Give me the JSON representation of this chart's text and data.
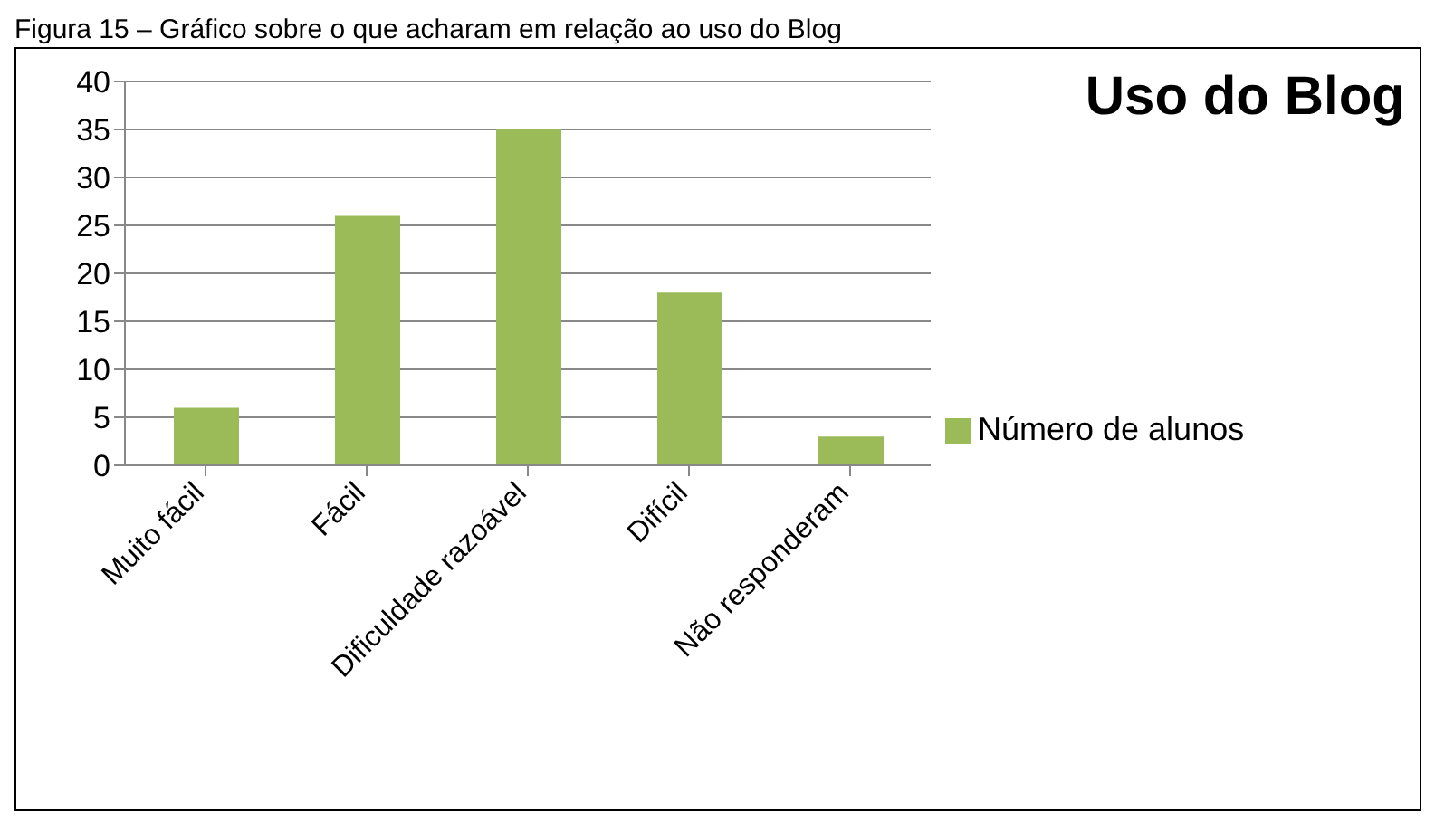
{
  "chart_data": {
    "type": "bar",
    "title": "Uso do Blog",
    "annotations": [
      "Figura 15 – Gráfico sobre o que acharam em relação ao uso do Blog"
    ],
    "categories": [
      "Muito fácil",
      "Fácil",
      "Dificuldade razoável",
      "Difícil",
      "Não responderam"
    ],
    "series": [
      {
        "name": "Número de alunos",
        "color": "#9bbb59",
        "values": [
          6,
          26,
          35,
          18,
          3
        ]
      }
    ],
    "ylim": [
      0,
      40
    ],
    "yticks": [
      0,
      5,
      10,
      15,
      20,
      25,
      30,
      35,
      40
    ],
    "grid": "y",
    "legend": "right"
  }
}
